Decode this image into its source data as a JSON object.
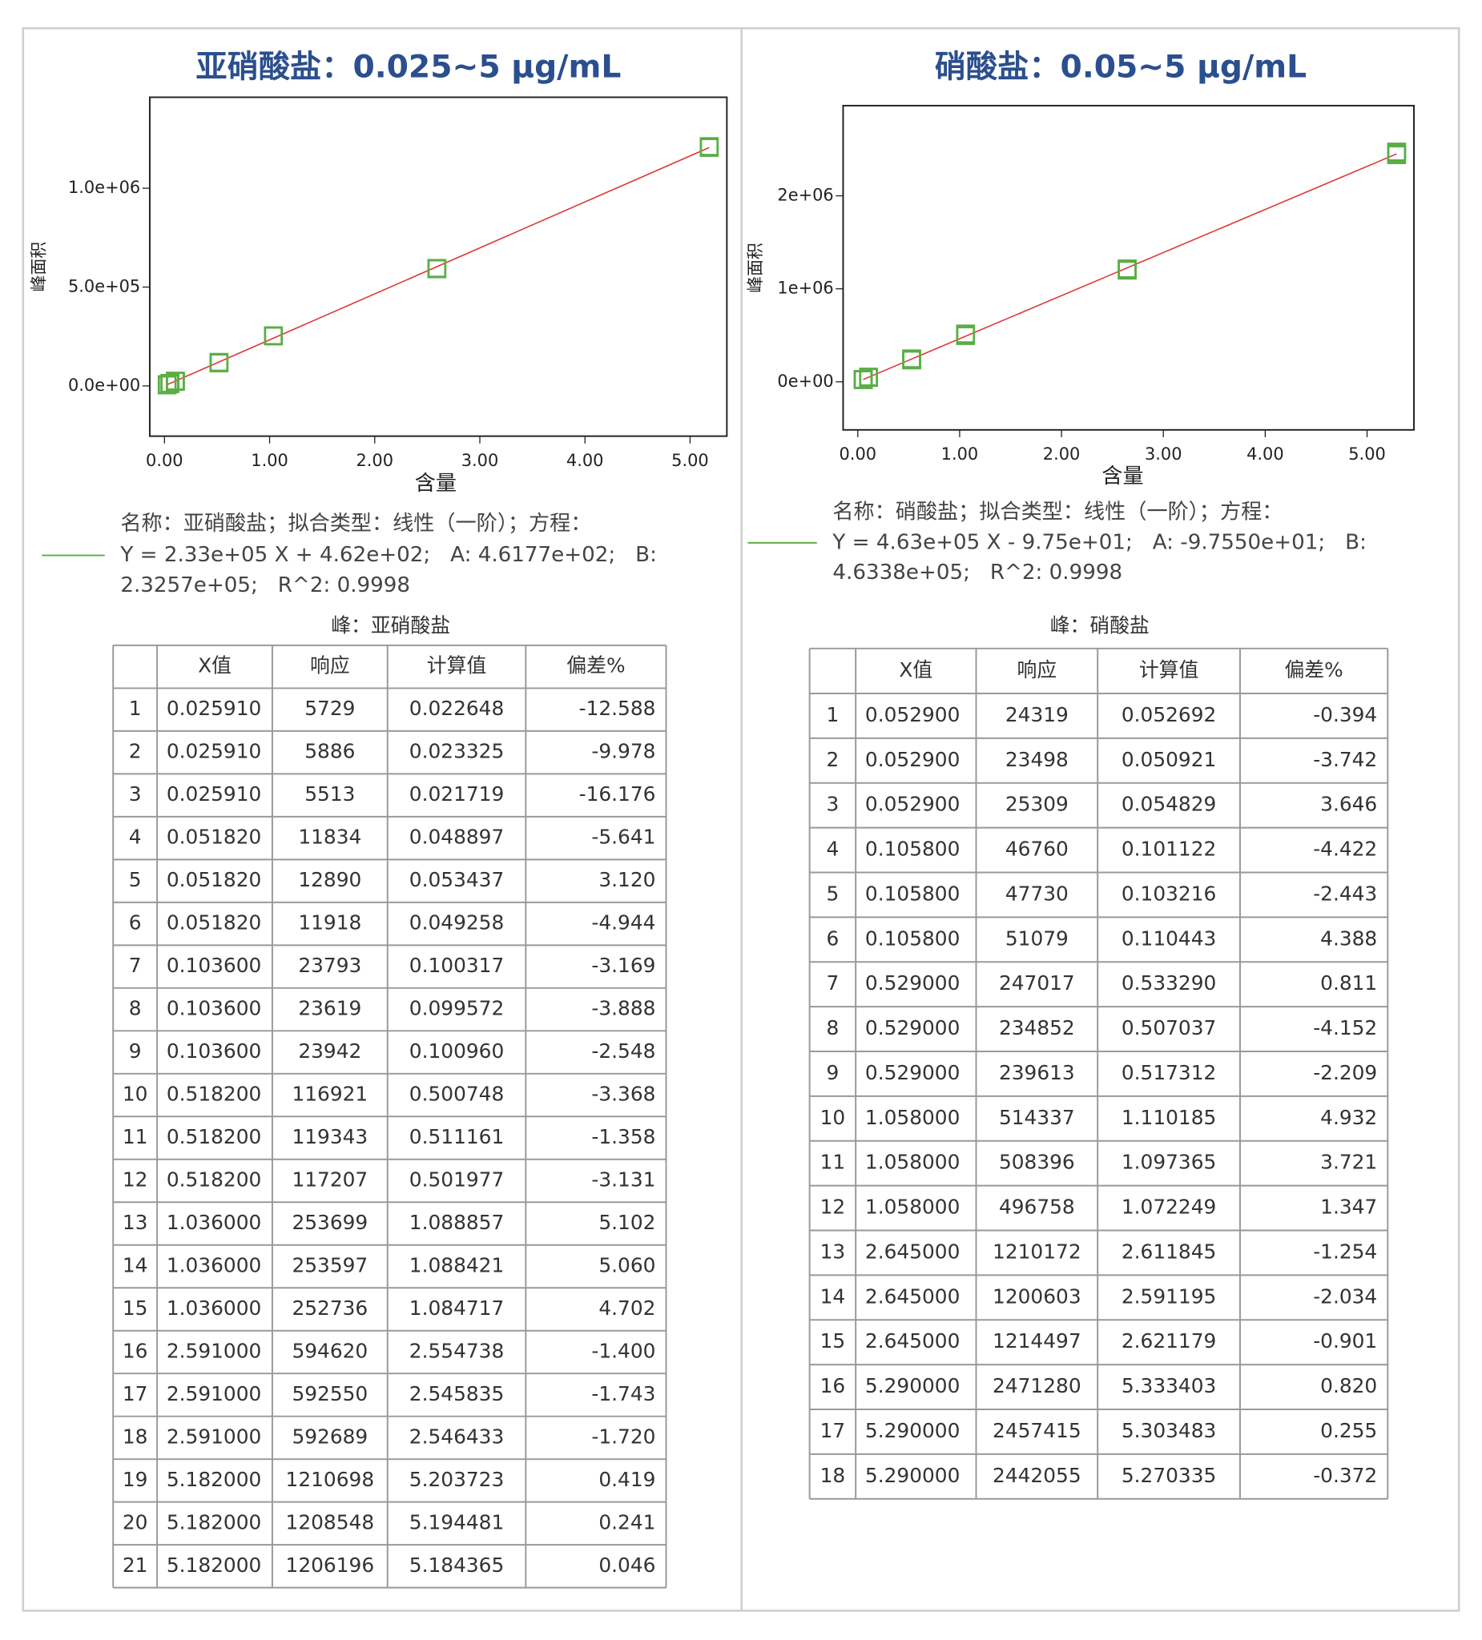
{
  "chart_data": [
    {
      "type": "scatter",
      "title": "亚硝酸盐：0.025~5 μg/mL",
      "x_label": "含量",
      "y_label": "峰面积",
      "xlim": [
        -0.14,
        5.35
      ],
      "ylim": [
        -254000,
        1460000
      ],
      "xticks": [
        {
          "value": 0,
          "label": "0.00"
        },
        {
          "value": 1,
          "label": "1.00"
        },
        {
          "value": 2,
          "label": "2.00"
        },
        {
          "value": 3,
          "label": "3.00"
        },
        {
          "value": 4,
          "label": "4.00"
        },
        {
          "value": 5,
          "label": "5.00"
        }
      ],
      "yticks": [
        {
          "value": 0,
          "label": "0.0e+00"
        },
        {
          "value": 500000,
          "label": "5.0e+05"
        },
        {
          "value": 1000000,
          "label": "1.0e+06"
        }
      ],
      "x": [
        0.02591,
        0.02591,
        0.02591,
        0.05182,
        0.05182,
        0.05182,
        0.1036,
        0.1036,
        0.1036,
        0.5182,
        0.5182,
        0.5182,
        1.036,
        1.036,
        1.036,
        2.591,
        2.591,
        2.591,
        5.182,
        5.182,
        5.182
      ],
      "series": [
        {
          "color": "#5aae45",
          "values": [
            5729,
            5886,
            5513,
            11834,
            12890,
            11918,
            23793,
            23619,
            23942,
            116921,
            119343,
            117207,
            253699,
            253597,
            252736,
            594620,
            592550,
            592689,
            1210698,
            1208548,
            1206196
          ]
        }
      ],
      "fit": {
        "intercept": 461.77,
        "slope": 232570,
        "color": "#e03434"
      },
      "fit_label": [
        "名称：亚硝酸盐；拟合类型：线性（一阶）；方程：",
        "Y = 2.33e+05 X + 4.62e+02;   A: 4.6177e+02;   B:",
        "2.3257e+05;   R^2: 0.9998"
      ]
    },
    {
      "type": "scatter",
      "title": "硝酸盐：0.05~5 μg/mL",
      "x_label": "含量",
      "y_label": "峰面积",
      "xlim": [
        -0.144,
        5.46
      ],
      "ylim": [
        -517000,
        2970000
      ],
      "xticks": [
        {
          "value": 0,
          "label": "0.00"
        },
        {
          "value": 1,
          "label": "1.00"
        },
        {
          "value": 2,
          "label": "2.00"
        },
        {
          "value": 3,
          "label": "3.00"
        },
        {
          "value": 4,
          "label": "4.00"
        },
        {
          "value": 5,
          "label": "5.00"
        }
      ],
      "yticks": [
        {
          "value": 0,
          "label": "0e+00"
        },
        {
          "value": 1000000,
          "label": "1e+06"
        },
        {
          "value": 2000000,
          "label": "2e+06"
        }
      ],
      "x": [
        0.0529,
        0.0529,
        0.0529,
        0.1058,
        0.1058,
        0.1058,
        0.529,
        0.529,
        0.529,
        1.058,
        1.058,
        1.058,
        2.645,
        2.645,
        2.645,
        5.29,
        5.29,
        5.29
      ],
      "series": [
        {
          "color": "#5aae45",
          "values": [
            24319,
            23498,
            25309,
            46760,
            47730,
            51079,
            247017,
            234852,
            239613,
            514337,
            508396,
            496758,
            1210172,
            1200603,
            1214497,
            2471280,
            2457415,
            2442055
          ]
        }
      ],
      "fit": {
        "intercept": -97.55,
        "slope": 463380,
        "color": "#e03434"
      },
      "fit_label": [
        "名称：硝酸盐；拟合类型：线性（一阶）；方程：",
        "Y = 4.63e+05 X - 9.75e+01;   A: -9.7550e+01;   B:",
        "4.6338e+05;   R^2: 0.9998"
      ]
    }
  ],
  "tables": [
    {
      "caption": "峰：亚硝酸盐",
      "header": [
        "X值",
        "响应",
        "计算值",
        "偏差%"
      ],
      "rows": [
        [
          "1",
          "0.025910",
          "5729",
          "0.022648",
          "-12.588"
        ],
        [
          "2",
          "0.025910",
          "5886",
          "0.023325",
          "-9.978"
        ],
        [
          "3",
          "0.025910",
          "5513",
          "0.021719",
          "-16.176"
        ],
        [
          "4",
          "0.051820",
          "11834",
          "0.048897",
          "-5.641"
        ],
        [
          "5",
          "0.051820",
          "12890",
          "0.053437",
          "3.120"
        ],
        [
          "6",
          "0.051820",
          "11918",
          "0.049258",
          "-4.944"
        ],
        [
          "7",
          "0.103600",
          "23793",
          "0.100317",
          "-3.169"
        ],
        [
          "8",
          "0.103600",
          "23619",
          "0.099572",
          "-3.888"
        ],
        [
          "9",
          "0.103600",
          "23942",
          "0.100960",
          "-2.548"
        ],
        [
          "10",
          "0.518200",
          "116921",
          "0.500748",
          "-3.368"
        ],
        [
          "11",
          "0.518200",
          "119343",
          "0.511161",
          "-1.358"
        ],
        [
          "12",
          "0.518200",
          "117207",
          "0.501977",
          "-3.131"
        ],
        [
          "13",
          "1.036000",
          "253699",
          "1.088857",
          "5.102"
        ],
        [
          "14",
          "1.036000",
          "253597",
          "1.088421",
          "5.060"
        ],
        [
          "15",
          "1.036000",
          "252736",
          "1.084717",
          "4.702"
        ],
        [
          "16",
          "2.591000",
          "594620",
          "2.554738",
          "-1.400"
        ],
        [
          "17",
          "2.591000",
          "592550",
          "2.545835",
          "-1.743"
        ],
        [
          "18",
          "2.591000",
          "592689",
          "2.546433",
          "-1.720"
        ],
        [
          "19",
          "5.182000",
          "1210698",
          "5.203723",
          "0.419"
        ],
        [
          "20",
          "5.182000",
          "1208548",
          "5.194481",
          "0.241"
        ],
        [
          "21",
          "5.182000",
          "1206196",
          "5.184365",
          "0.046"
        ]
      ]
    },
    {
      "caption": "峰：硝酸盐",
      "header": [
        "X值",
        "响应",
        "计算值",
        "偏差%"
      ],
      "rows": [
        [
          "1",
          "0.052900",
          "24319",
          "0.052692",
          "-0.394"
        ],
        [
          "2",
          "0.052900",
          "23498",
          "0.050921",
          "-3.742"
        ],
        [
          "3",
          "0.052900",
          "25309",
          "0.054829",
          "3.646"
        ],
        [
          "4",
          "0.105800",
          "46760",
          "0.101122",
          "-4.422"
        ],
        [
          "5",
          "0.105800",
          "47730",
          "0.103216",
          "-2.443"
        ],
        [
          "6",
          "0.105800",
          "51079",
          "0.110443",
          "4.388"
        ],
        [
          "7",
          "0.529000",
          "247017",
          "0.533290",
          "0.811"
        ],
        [
          "8",
          "0.529000",
          "234852",
          "0.507037",
          "-4.152"
        ],
        [
          "9",
          "0.529000",
          "239613",
          "0.517312",
          "-2.209"
        ],
        [
          "10",
          "1.058000",
          "514337",
          "1.110185",
          "4.932"
        ],
        [
          "11",
          "1.058000",
          "508396",
          "1.097365",
          "3.721"
        ],
        [
          "12",
          "1.058000",
          "496758",
          "1.072249",
          "1.347"
        ],
        [
          "13",
          "2.645000",
          "1210172",
          "2.611845",
          "-1.254"
        ],
        [
          "14",
          "2.645000",
          "1200603",
          "2.591195",
          "-2.034"
        ],
        [
          "15",
          "2.645000",
          "1214497",
          "2.621179",
          "-0.901"
        ],
        [
          "16",
          "5.290000",
          "2471280",
          "5.333403",
          "0.820"
        ],
        [
          "17",
          "5.290000",
          "2457415",
          "5.303483",
          "0.255"
        ],
        [
          "18",
          "5.290000",
          "2442055",
          "5.270335",
          "-0.372"
        ]
      ]
    }
  ]
}
